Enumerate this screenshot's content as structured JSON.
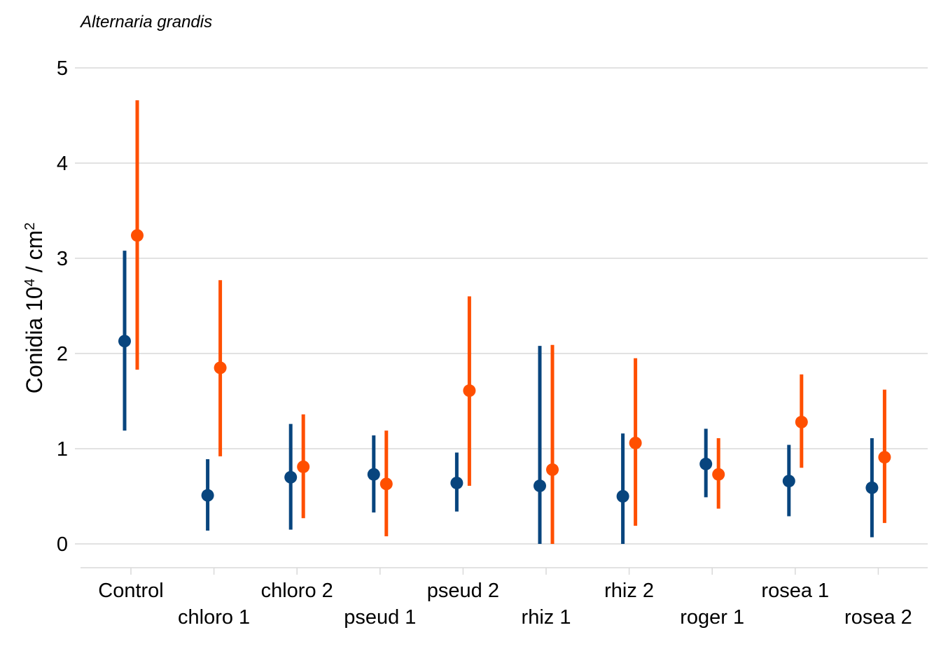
{
  "chart_data": {
    "type": "pointrange",
    "title": "Alternaria grandis",
    "ylabel_main": "Conidia 10",
    "ylabel_sup1": "4",
    "ylabel_mid": " / cm",
    "ylabel_sup2": "2",
    "xlabel": "",
    "ylim": [
      0,
      5
    ],
    "yticks": [
      0,
      1,
      2,
      3,
      4,
      5
    ],
    "grid": true,
    "legend": "none",
    "categories": [
      "Control",
      "chloro 1",
      "chloro 2",
      "pseud 1",
      "pseud 2",
      "rhiz 1",
      "rhiz 2",
      "roger 1",
      "rosea 1",
      "rosea 2"
    ],
    "series": [
      {
        "color": "#08457e",
        "values": [
          2.13,
          0.51,
          0.7,
          0.73,
          0.64,
          0.61,
          0.5,
          0.84,
          0.66,
          0.59
        ],
        "lower": [
          1.19,
          0.14,
          0.15,
          0.33,
          0.34,
          0.0,
          0.0,
          0.49,
          0.29,
          0.07
        ],
        "upper": [
          3.08,
          0.89,
          1.26,
          1.14,
          0.96,
          2.08,
          1.16,
          1.21,
          1.04,
          1.11
        ]
      },
      {
        "color": "#ff4f00",
        "values": [
          3.24,
          1.85,
          0.81,
          0.63,
          1.61,
          0.78,
          1.06,
          0.73,
          1.28,
          0.91
        ],
        "lower": [
          1.83,
          0.92,
          0.27,
          0.08,
          0.61,
          0.0,
          0.19,
          0.37,
          0.8,
          0.22
        ],
        "upper": [
          4.66,
          2.77,
          1.36,
          1.19,
          2.6,
          2.09,
          1.95,
          1.11,
          1.78,
          1.62
        ]
      }
    ]
  }
}
